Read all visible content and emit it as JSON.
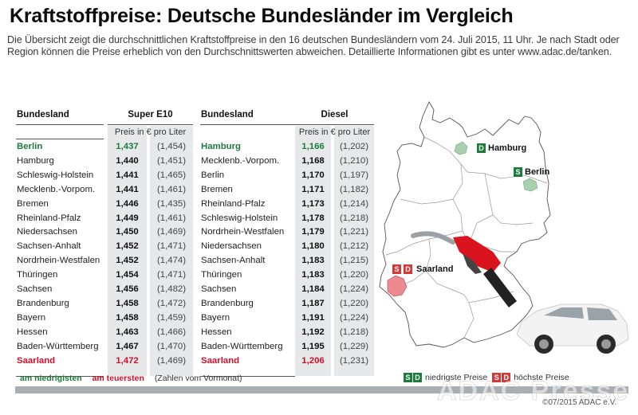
{
  "header": {
    "title": "Kraftstoffpreise: Deutsche Bundesländer im Vergleich",
    "intro": "Die Übersicht zeigt die durchschnittlichen Kraftstoffpreise in den 16 deutschen Bundesländern vom 24. Juli 2015, 11 Uhr. Je nach Stadt oder Region können die Preise erheblich von den Durchschnittswerten abweichen. Detaillierte Informationen gibt es unter www.adac.de/tanken."
  },
  "chart_data": {
    "type": "table",
    "title": "Kraftstoffpreise: Deutsche Bundesländer im Vergleich",
    "tables": [
      {
        "fuel": "Super E10",
        "col_state": "Bundesland",
        "unit": "Preis in € pro Liter",
        "rows": [
          {
            "state": "Berlin",
            "price": "1,437",
            "prev": "(1,454)",
            "mark": "low"
          },
          {
            "state": "Hamburg",
            "price": "1,440",
            "prev": "(1,451)",
            "mark": ""
          },
          {
            "state": "Schleswig-Holstein",
            "price": "1,441",
            "prev": "(1,465)",
            "mark": ""
          },
          {
            "state": "Mecklenb.-Vorpom.",
            "price": "1,441",
            "prev": "(1,461)",
            "mark": ""
          },
          {
            "state": "Bremen",
            "price": "1,446",
            "prev": "(1,435)",
            "mark": ""
          },
          {
            "state": "Rheinland-Pfalz",
            "price": "1,449",
            "prev": "(1,461)",
            "mark": ""
          },
          {
            "state": "Niedersachsen",
            "price": "1,450",
            "prev": "(1,469)",
            "mark": ""
          },
          {
            "state": "Sachsen-Anhalt",
            "price": "1,452",
            "prev": "(1,471)",
            "mark": ""
          },
          {
            "state": "Nordrhein-Westfalen",
            "price": "1,452",
            "prev": "(1,474)",
            "mark": ""
          },
          {
            "state": "Thüringen",
            "price": "1,454",
            "prev": "(1,471)",
            "mark": ""
          },
          {
            "state": "Sachsen",
            "price": "1,456",
            "prev": "(1,482)",
            "mark": ""
          },
          {
            "state": "Brandenburg",
            "price": "1,458",
            "prev": "(1,472)",
            "mark": ""
          },
          {
            "state": "Bayern",
            "price": "1,458",
            "prev": "(1,459)",
            "mark": ""
          },
          {
            "state": "Hessen",
            "price": "1,463",
            "prev": "(1,466)",
            "mark": ""
          },
          {
            "state": "Baden-Württemberg",
            "price": "1,467",
            "prev": "(1,470)",
            "mark": ""
          },
          {
            "state": "Saarland",
            "price": "1,472",
            "prev": "(1,469)",
            "mark": "high"
          }
        ]
      },
      {
        "fuel": "Diesel",
        "col_state": "Bundesland",
        "unit": "Preis in € pro Liter",
        "rows": [
          {
            "state": "Hamburg",
            "price": "1,166",
            "prev": "(1,202)",
            "mark": "low"
          },
          {
            "state": "Mecklenb.-Vorpom.",
            "price": "1,168",
            "prev": "(1,210)",
            "mark": ""
          },
          {
            "state": "Berlin",
            "price": "1,170",
            "prev": "(1,197)",
            "mark": ""
          },
          {
            "state": "Bremen",
            "price": "1,171",
            "prev": "(1,182)",
            "mark": ""
          },
          {
            "state": "Rheinland-Pfalz",
            "price": "1,173",
            "prev": "(1,214)",
            "mark": ""
          },
          {
            "state": "Schleswig-Holstein",
            "price": "1,178",
            "prev": "(1,218)",
            "mark": ""
          },
          {
            "state": "Nordrhein-Westfalen",
            "price": "1,179",
            "prev": "(1,221)",
            "mark": ""
          },
          {
            "state": "Niedersachsen",
            "price": "1,180",
            "prev": "(1,212)",
            "mark": ""
          },
          {
            "state": "Sachsen-Anhalt",
            "price": "1,183",
            "prev": "(1,215)",
            "mark": ""
          },
          {
            "state": "Thüringen",
            "price": "1,183",
            "prev": "(1,220)",
            "mark": ""
          },
          {
            "state": "Sachsen",
            "price": "1,184",
            "prev": "(1,224)",
            "mark": ""
          },
          {
            "state": "Brandenburg",
            "price": "1,187",
            "prev": "(1,220)",
            "mark": ""
          },
          {
            "state": "Bayern",
            "price": "1,191",
            "prev": "(1,224)",
            "mark": ""
          },
          {
            "state": "Hessen",
            "price": "1,192",
            "prev": "(1,218)",
            "mark": ""
          },
          {
            "state": "Baden-Württemberg",
            "price": "1,195",
            "prev": "(1,229)",
            "mark": ""
          },
          {
            "state": "Saarland",
            "price": "1,206",
            "prev": "(1,231)",
            "mark": "high"
          }
        ]
      }
    ],
    "legend": {
      "low": "am niedrigisten",
      "high": "am teuersten",
      "note": "(Zahlen vom Vormonat)"
    }
  },
  "map": {
    "labels": [
      {
        "badges": [
          "D"
        ],
        "color": "green",
        "text": "Hamburg"
      },
      {
        "badges": [
          "S"
        ],
        "color": "green",
        "text": "Berlin"
      },
      {
        "badges": [
          "S",
          "D"
        ],
        "color": "red",
        "text": "Saarland"
      }
    ],
    "legend": {
      "low_badges": [
        "S",
        "D"
      ],
      "low_text": "niedrigste Preise",
      "high_badges": [
        "S",
        "D"
      ],
      "high_text": "höchste Preise"
    },
    "colors": {
      "low": "#1c7c3a",
      "high": "#d23a3a",
      "low_fill": "#a8cfae",
      "high_fill": "#ec8a90"
    }
  },
  "footer": {
    "watermark": "ADAC Presse",
    "copyright": "©07/2015 ADAC e.V."
  }
}
